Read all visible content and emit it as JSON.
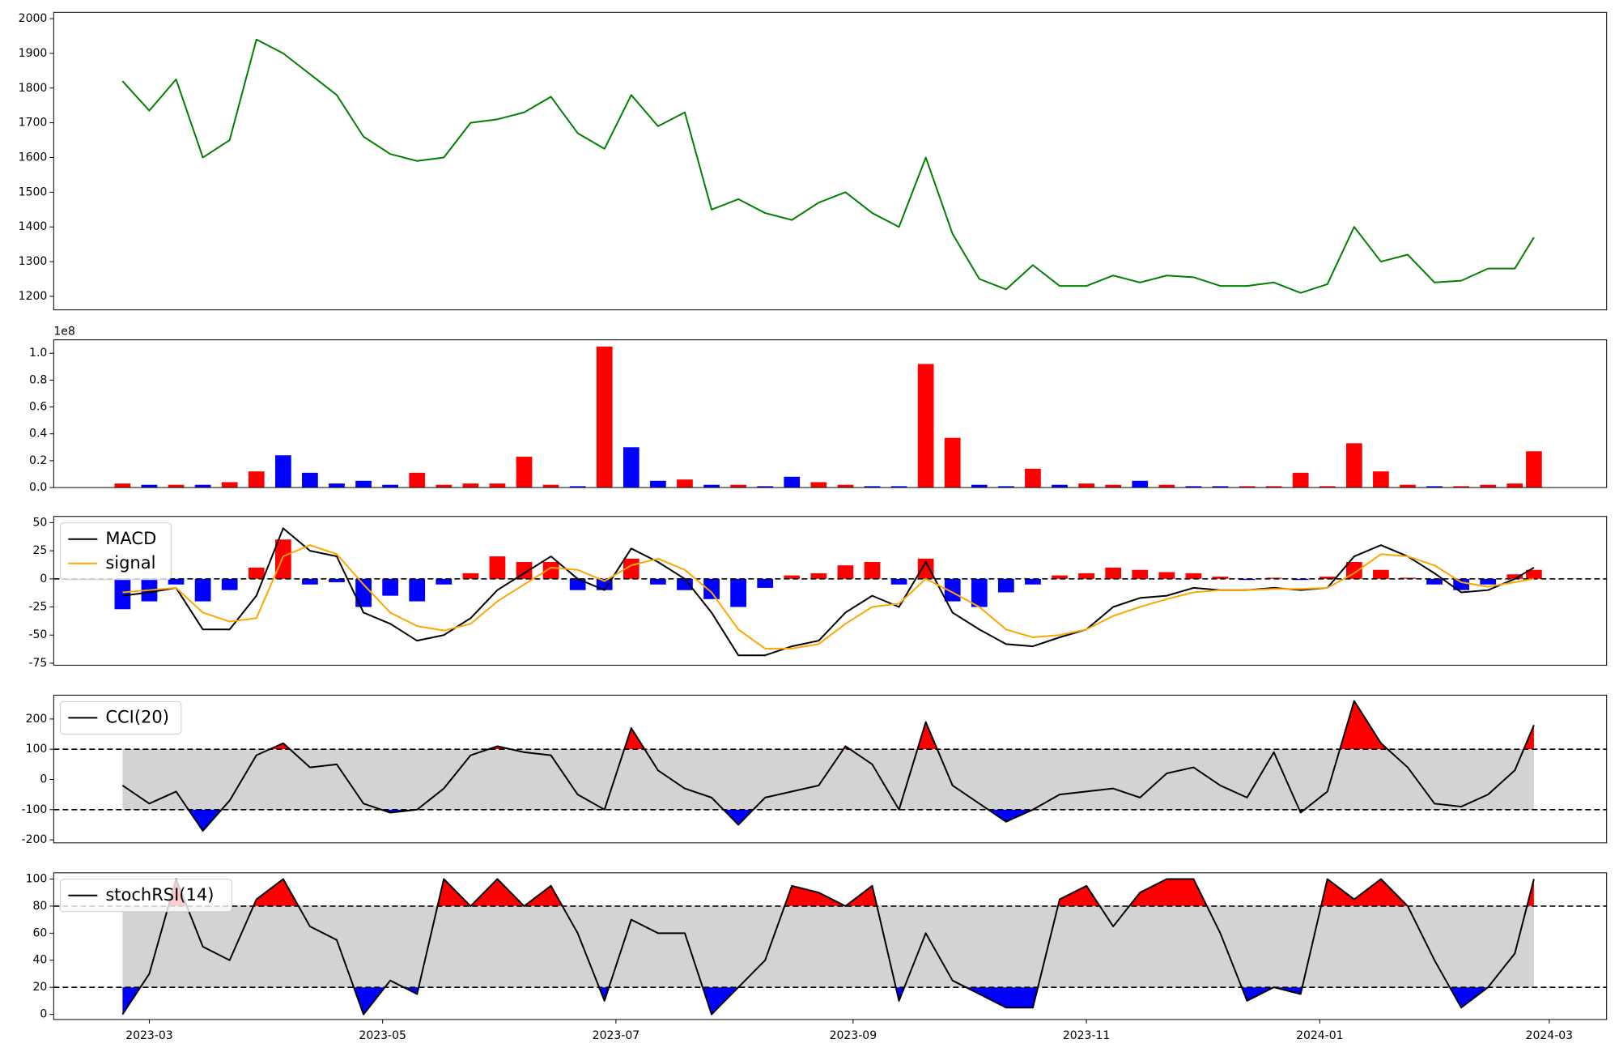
{
  "chart_data": {
    "type": "multi-panel",
    "x": [
      "2023-02-22",
      "2023-03-01",
      "2023-03-08",
      "2023-03-15",
      "2023-03-22",
      "2023-03-29",
      "2023-04-05",
      "2023-04-12",
      "2023-04-19",
      "2023-04-26",
      "2023-05-03",
      "2023-05-10",
      "2023-05-17",
      "2023-05-24",
      "2023-05-31",
      "2023-06-07",
      "2023-06-14",
      "2023-06-21",
      "2023-06-28",
      "2023-07-05",
      "2023-07-12",
      "2023-07-19",
      "2023-07-26",
      "2023-08-02",
      "2023-08-09",
      "2023-08-16",
      "2023-08-23",
      "2023-08-30",
      "2023-09-06",
      "2023-09-13",
      "2023-09-20",
      "2023-09-27",
      "2023-10-04",
      "2023-10-11",
      "2023-10-18",
      "2023-10-25",
      "2023-11-01",
      "2023-11-08",
      "2023-11-15",
      "2023-11-22",
      "2023-11-29",
      "2023-12-06",
      "2023-12-13",
      "2023-12-20",
      "2023-12-27",
      "2024-01-03",
      "2024-01-10",
      "2024-01-17",
      "2024-01-24",
      "2024-01-31",
      "2024-02-07",
      "2024-02-14",
      "2024-02-21",
      "2024-02-26"
    ],
    "xlim": [
      "2023-02-04",
      "2024-03-16"
    ],
    "xticks": [
      {
        "value": "2023-03-01",
        "label": "2023-03"
      },
      {
        "value": "2023-05-01",
        "label": "2023-05"
      },
      {
        "value": "2023-07-01",
        "label": "2023-07"
      },
      {
        "value": "2023-09-01",
        "label": "2023-09"
      },
      {
        "value": "2023-11-01",
        "label": "2023-11"
      },
      {
        "value": "2024-01-01",
        "label": "2024-01"
      },
      {
        "value": "2024-03-01",
        "label": "2024-03"
      }
    ],
    "panels": [
      {
        "type": "line",
        "series": [
          {
            "color": "green",
            "values": [
              1820,
              1735,
              1825,
              1600,
              1650,
              1940,
              1900,
              1840,
              1780,
              1660,
              1610,
              1590,
              1600,
              1700,
              1710,
              1730,
              1775,
              1670,
              1625,
              1780,
              1690,
              1730,
              1450,
              1480,
              1440,
              1420,
              1470,
              1500,
              1440,
              1400,
              1600,
              1380,
              1250,
              1220,
              1290,
              1230,
              1230,
              1260,
              1240,
              1260,
              1255,
              1230,
              1230,
              1240,
              1210,
              1235,
              1400,
              1300,
              1320,
              1240,
              1245,
              1280,
              1280,
              1370
            ]
          }
        ],
        "ylim": [
          1161,
          2018
        ],
        "yticks": [
          1200,
          1300,
          1400,
          1500,
          1600,
          1700,
          1800,
          1900,
          2000
        ]
      },
      {
        "type": "bar",
        "values": [
          0.03,
          0.02,
          0.02,
          0.02,
          0.04,
          0.12,
          0.24,
          0.11,
          0.03,
          0.05,
          0.02,
          0.11,
          0.02,
          0.03,
          0.03,
          0.23,
          0.02,
          0.01,
          1.05,
          0.3,
          0.05,
          0.06,
          0.02,
          0.02,
          0.01,
          0.08,
          0.04,
          0.02,
          0.01,
          0.01,
          0.92,
          0.37,
          0.02,
          0.01,
          0.14,
          0.02,
          0.03,
          0.02,
          0.05,
          0.02,
          0.01,
          0.01,
          0.01,
          0.01,
          0.11,
          0.01,
          0.33,
          0.12,
          0.02,
          0.01,
          0.01,
          0.02,
          0.03,
          0.27
        ],
        "colors": [
          "red",
          "blue",
          "red",
          "blue",
          "red",
          "red",
          "blue",
          "blue",
          "blue",
          "blue",
          "blue",
          "red",
          "red",
          "red",
          "red",
          "red",
          "red",
          "blue",
          "red",
          "blue",
          "blue",
          "red",
          "blue",
          "red",
          "blue",
          "blue",
          "red",
          "red",
          "blue",
          "blue",
          "red",
          "red",
          "blue",
          "blue",
          "red",
          "blue",
          "red",
          "red",
          "blue",
          "red",
          "blue",
          "blue",
          "red",
          "red",
          "red",
          "red",
          "red",
          "red",
          "red",
          "blue",
          "red",
          "red",
          "red",
          "red"
        ],
        "offset_label": "1e8",
        "ylim": [
          0,
          1.1
        ],
        "yticks": [
          {
            "value": 0,
            "label": "0.0"
          },
          {
            "value": 0.2,
            "label": "0.2"
          },
          {
            "value": 0.4,
            "label": "0.4"
          },
          {
            "value": 0.6,
            "label": "0.6"
          },
          {
            "value": 0.8,
            "label": "0.8"
          },
          {
            "value": 1,
            "label": "1.0"
          }
        ]
      },
      {
        "type": "macd",
        "series": [
          {
            "name": "MACD",
            "color": "black",
            "values": [
              -15,
              -12,
              -8,
              -45,
              -45,
              -15,
              45,
              25,
              20,
              -30,
              -40,
              -55,
              -50,
              -35,
              -10,
              5,
              20,
              0,
              -10,
              27,
              15,
              0,
              -30,
              -68,
              -68,
              -60,
              -55,
              -30,
              -15,
              -25,
              15,
              -30,
              -45,
              -58,
              -60,
              -52,
              -45,
              -25,
              -17,
              -15,
              -8,
              -10,
              -10,
              -8,
              -10,
              -8,
              20,
              30,
              20,
              5,
              -12,
              -10,
              0,
              10
            ]
          },
          {
            "name": "signal",
            "color": "orange",
            "values": [
              -12,
              -10,
              -8,
              -30,
              -38,
              -35,
              20,
              30,
              22,
              -5,
              -30,
              -42,
              -46,
              -40,
              -20,
              -5,
              10,
              8,
              -2,
              12,
              18,
              8,
              -12,
              -45,
              -62,
              -62,
              -58,
              -40,
              -25,
              -22,
              0,
              -12,
              -25,
              -45,
              -52,
              -50,
              -45,
              -33,
              -25,
              -18,
              -12,
              -10,
              -10,
              -9,
              -9,
              -8,
              5,
              22,
              20,
              12,
              -3,
              -7,
              -3,
              0
            ]
          }
        ],
        "histogram": {
          "values": [
            -27,
            -20,
            -5,
            -20,
            -10,
            10,
            35,
            -5,
            -3,
            -25,
            -15,
            -20,
            -5,
            5,
            20,
            15,
            15,
            -10,
            -10,
            18,
            -5,
            -10,
            -18,
            -25,
            -8,
            3,
            5,
            12,
            15,
            -5,
            18,
            -20,
            -25,
            -12,
            -5,
            3,
            5,
            10,
            8,
            6,
            5,
            2,
            -1,
            1,
            -1,
            2,
            15,
            8,
            1,
            -5,
            -10,
            -5,
            4,
            8
          ],
          "up_color": "red",
          "down_color": "blue"
        },
        "hline": 0,
        "legend": "upper left",
        "ylim": [
          -76.8,
          55.5
        ],
        "yticks": [
          -75,
          -50,
          -25,
          0,
          25,
          50
        ]
      },
      {
        "type": "band",
        "series": [
          {
            "name": "CCI(20)",
            "color": "black",
            "values": [
              -20,
              -80,
              -40,
              -170,
              -70,
              80,
              120,
              40,
              50,
              -80,
              -110,
              -100,
              -30,
              80,
              110,
              90,
              80,
              -50,
              -100,
              170,
              30,
              -30,
              -60,
              -150,
              -60,
              -40,
              -20,
              110,
              50,
              -100,
              190,
              -20,
              -80,
              -140,
              -100,
              -50,
              -40,
              -30,
              -60,
              20,
              40,
              -20,
              -60,
              90,
              -110,
              -40,
              260,
              120,
              40,
              -80,
              -90,
              -50,
              30,
              180
            ]
          }
        ],
        "bands": [
          -100,
          100
        ],
        "band_color": "lightgray",
        "above_color": "red",
        "below_color": "blue",
        "legend": "upper left",
        "ylim": [
          -210,
          279
        ],
        "yticks": [
          -200,
          -100,
          0,
          100,
          200
        ]
      },
      {
        "type": "band",
        "series": [
          {
            "name": "stochRSI(14)",
            "color": "black",
            "values": [
              0,
              30,
              100,
              50,
              40,
              85,
              100,
              65,
              55,
              0,
              25,
              15,
              100,
              80,
              100,
              80,
              95,
              60,
              10,
              70,
              60,
              60,
              0,
              20,
              40,
              95,
              90,
              80,
              95,
              10,
              60,
              25,
              15,
              5,
              5,
              85,
              95,
              65,
              90,
              100,
              100,
              60,
              10,
              20,
              15,
              100,
              85,
              100,
              80,
              40,
              5,
              20,
              45,
              100
            ]
          }
        ],
        "bands": [
          20,
          80
        ],
        "band_color": "lightgray",
        "above_color": "red",
        "below_color": "blue",
        "legend": "upper left",
        "ylim": [
          -3.8,
          104.6
        ],
        "yticks": [
          0,
          20,
          40,
          60,
          80,
          100
        ]
      }
    ]
  }
}
